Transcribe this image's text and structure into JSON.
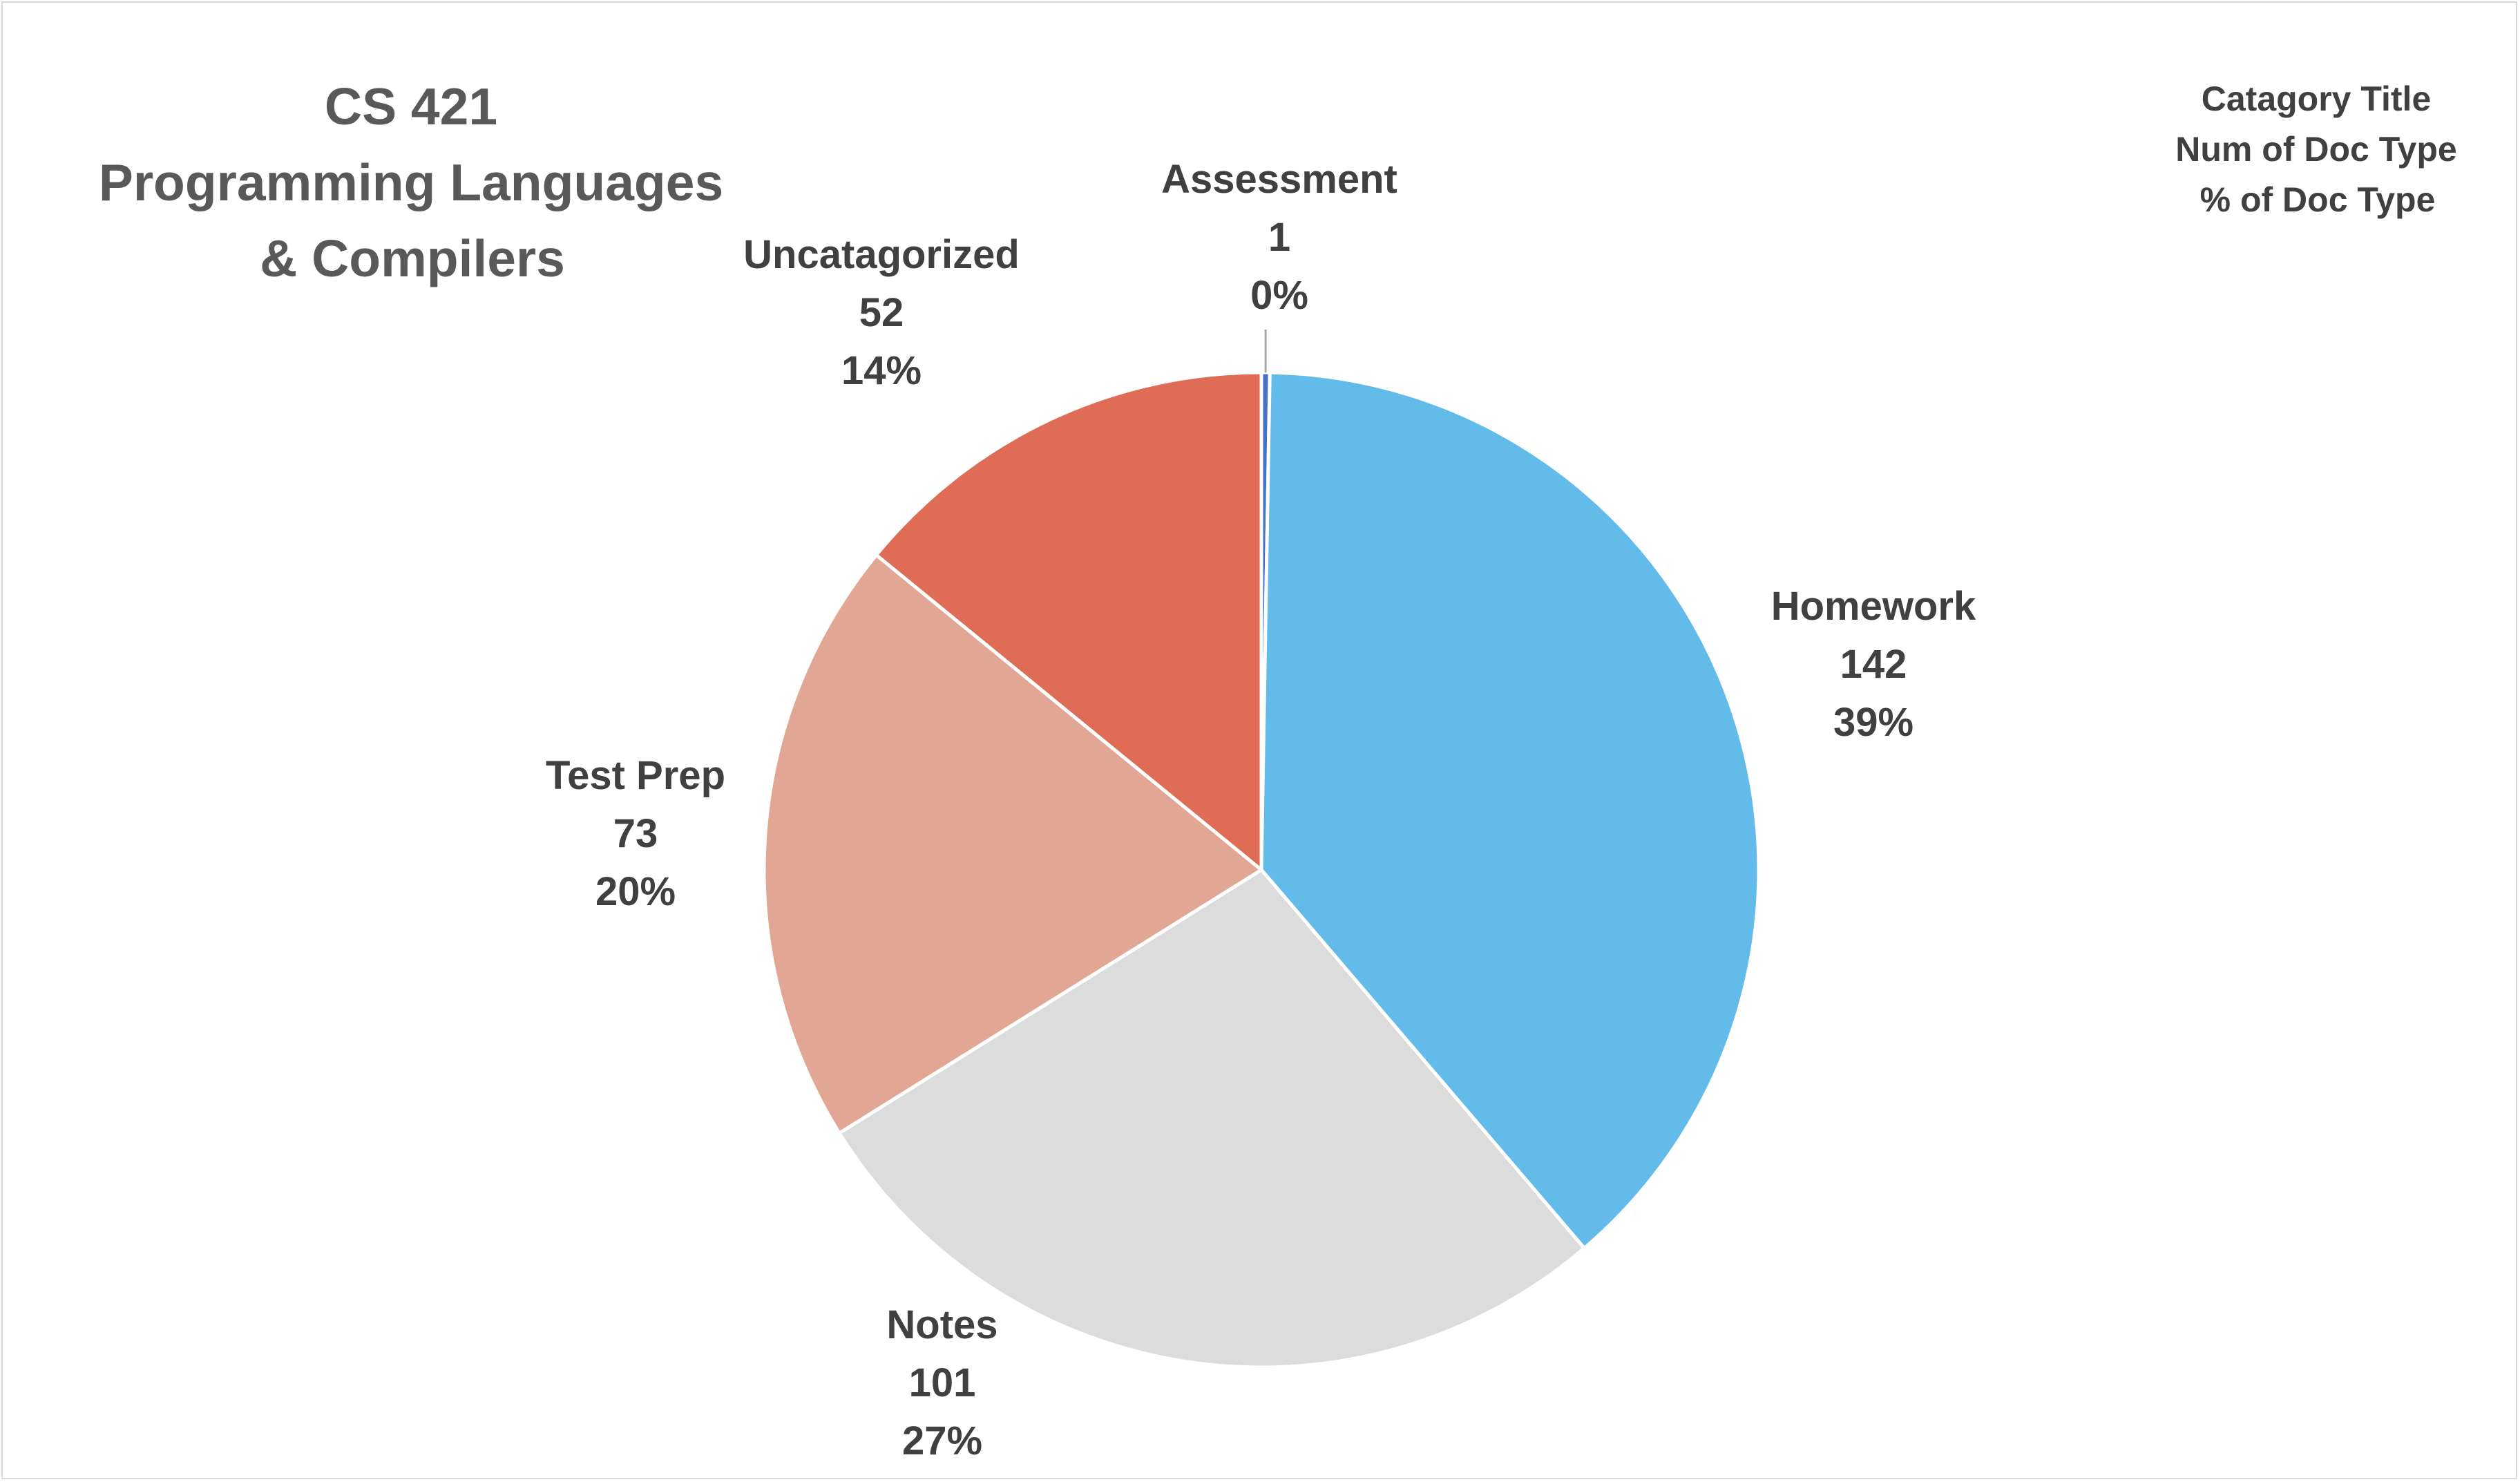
{
  "chart_data": {
    "type": "pie",
    "title_lines": [
      "CS 421",
      "Programming Languages",
      "& Compilers"
    ],
    "legend_note_lines": [
      "Catagory Title",
      "Num of Doc Type",
      "% of Doc Type"
    ],
    "start_angle_deg": 0,
    "direction": "clockwise",
    "slices": [
      {
        "name": "Assessment",
        "value": 1,
        "percent_label": "0%",
        "color": "#4472c4"
      },
      {
        "name": "Homework",
        "value": 142,
        "percent_label": "39%",
        "color": "#63bbea"
      },
      {
        "name": "Notes",
        "value": 101,
        "percent_label": "27%",
        "color": "#dcdcdc"
      },
      {
        "name": "Test Prep",
        "value": 73,
        "percent_label": "20%",
        "color": "#e2a794"
      },
      {
        "name": "Uncatagorized",
        "value": 52,
        "percent_label": "14%",
        "color": "#df6c56"
      }
    ],
    "slice_border_color": "#ffffff",
    "leader_line_color": "#a6a6a6"
  }
}
